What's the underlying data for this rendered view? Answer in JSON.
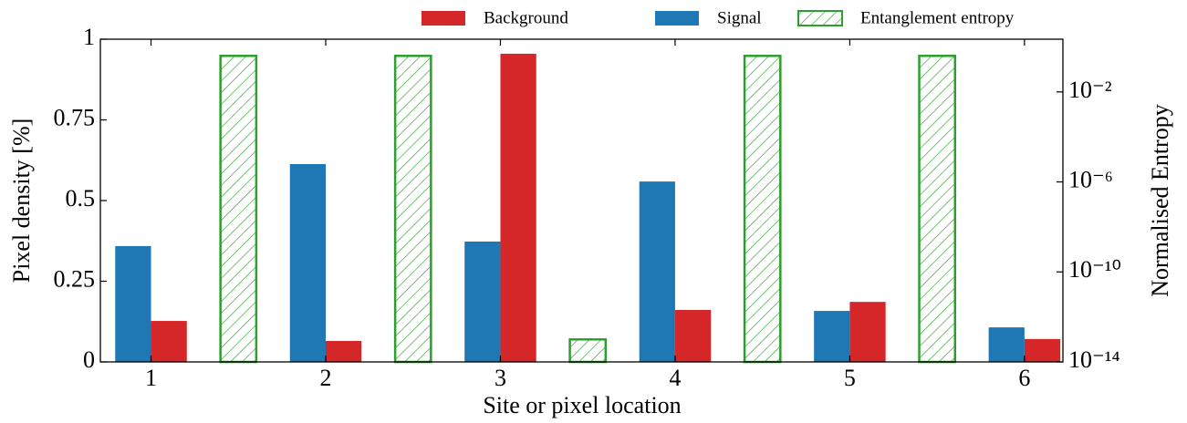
{
  "chart_data": {
    "type": "bar",
    "xlabel": "Site or pixel location",
    "ylabel": "Pixel density [%]",
    "y2label": "Normalised Entropy",
    "xlim": [
      0.71,
      6.22
    ],
    "xticks": [
      1,
      2,
      3,
      4,
      5,
      6
    ],
    "ylim": [
      0,
      1
    ],
    "yticks": [
      0,
      0.25,
      0.5,
      0.75,
      1
    ],
    "y2lim": [
      1e-14,
      2.2
    ],
    "y2scale": "log",
    "y2ticks": [
      {
        "value": 1e-14,
        "label": "10⁻¹⁴"
      },
      {
        "value": 1e-10,
        "label": "10⁻¹⁰"
      },
      {
        "value": 1e-06,
        "label": "10⁻⁶"
      },
      {
        "value": 0.01,
        "label": "10⁻²"
      }
    ],
    "legend": "top",
    "series": [
      {
        "name": "Background",
        "color": "#d62728",
        "x": [
          1,
          2,
          3,
          4,
          5,
          6
        ],
        "values": [
          0.127,
          0.065,
          0.955,
          0.161,
          0.186,
          0.071
        ]
      },
      {
        "name": "Signal",
        "color": "#1f77b4",
        "x": [
          1,
          2,
          3,
          4,
          5,
          6
        ],
        "values": [
          0.359,
          0.613,
          0.373,
          0.559,
          0.158,
          0.107
        ]
      },
      {
        "name": "Entanglement entropy",
        "color": "#2ca02c",
        "hatch": true,
        "axis": "y2",
        "x": [
          1.5,
          2.5,
          3.5,
          4.5,
          5.5
        ],
        "values": [
          0.4,
          0.4,
          1e-13,
          0.4,
          0.4
        ]
      }
    ]
  }
}
